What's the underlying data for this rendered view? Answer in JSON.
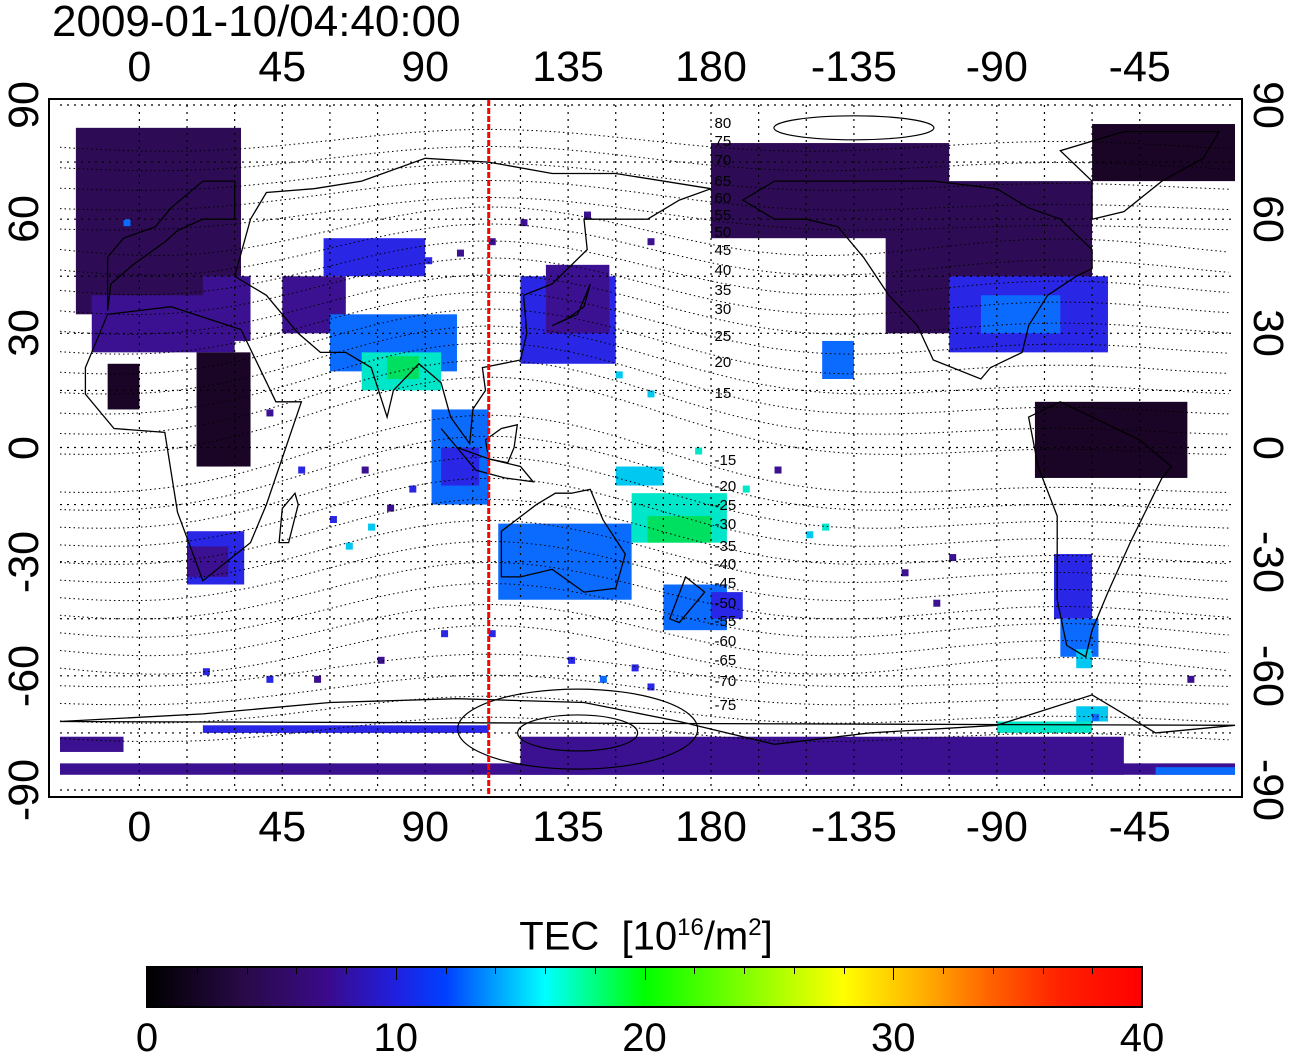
{
  "header": {
    "timestamp": "2009-01-10/04:40:00"
  },
  "map": {
    "type": "global TEC map",
    "projection": "equirectangular",
    "lon_ticks_top": [
      "0",
      "45",
      "90",
      "135",
      "180",
      "-135",
      "-90",
      "-45"
    ],
    "lon_ticks_bottom": [
      "0",
      "45",
      "90",
      "135",
      "180",
      "-135",
      "-90",
      "-45"
    ],
    "lat_ticks_left": [
      "90",
      "60",
      "30",
      "0",
      "-30",
      "-60",
      "-90"
    ],
    "lat_ticks_right": [
      "90",
      "60",
      "30",
      "0",
      "-30",
      "-60",
      "-90"
    ],
    "lon_range": [
      -25,
      345
    ],
    "lat_range": [
      -90,
      90
    ],
    "grid": "dotted",
    "meridian_marker": {
      "lon": 110,
      "color": "#ff0000"
    },
    "contour_labels": [
      "80",
      "75",
      "70",
      "65",
      "60",
      "55",
      "50",
      "45",
      "40",
      "35",
      "30",
      "25",
      "20",
      "15",
      "-15",
      "-20",
      "-25",
      "-30",
      "-35",
      "-40",
      "-45",
      "-50",
      "-55",
      "-60",
      "-65",
      "-70",
      "-75"
    ]
  },
  "colorbar": {
    "title": "TEC",
    "unit_base": "[10",
    "unit_exp": "16",
    "unit_mid": "/m",
    "unit_exp2": "2",
    "unit_end": "]",
    "ticks": [
      "0",
      "10",
      "20",
      "30",
      "40"
    ],
    "range": [
      0,
      40
    ]
  }
}
